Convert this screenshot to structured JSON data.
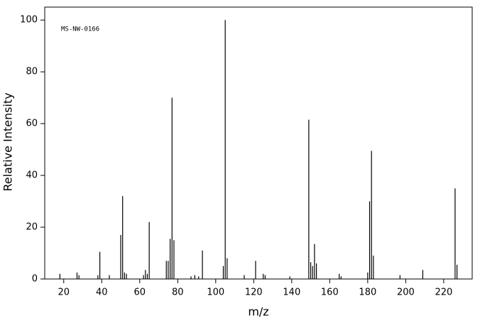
{
  "chart_data": {
    "type": "bar",
    "annotation": "MS-NW-0166",
    "x_label": "m/z",
    "y_label": "Relative Intensity",
    "color": "#000000",
    "x": [
      18,
      27,
      28,
      38,
      39,
      44,
      50,
      51,
      52,
      53,
      62,
      63,
      64,
      65,
      74,
      75,
      76,
      77,
      78,
      87,
      89,
      91,
      93,
      104,
      105,
      106,
      115,
      121,
      125,
      126,
      139,
      149,
      150,
      151,
      152,
      153,
      165,
      166,
      180,
      181,
      182,
      183,
      197,
      209,
      226,
      227
    ],
    "values": [
      2,
      2.5,
      1.5,
      1.5,
      10.5,
      1.5,
      17,
      32,
      2.5,
      2,
      1.5,
      3.5,
      2,
      22,
      7,
      7,
      15.5,
      70,
      15,
      1,
      1.5,
      1,
      11,
      5,
      100,
      8,
      1.5,
      7,
      2,
      1.5,
      1,
      61.5,
      6.5,
      5,
      13.5,
      6,
      2,
      1,
      2.5,
      30,
      49.5,
      9,
      1.5,
      3.5,
      35,
      5.5
    ],
    "xlim": [
      10,
      235
    ],
    "ylim": [
      0,
      105
    ],
    "xticks": [
      20,
      40,
      60,
      80,
      100,
      120,
      140,
      160,
      180,
      200,
      220
    ],
    "yticks": [
      0,
      20,
      40,
      60,
      80,
      100
    ]
  }
}
